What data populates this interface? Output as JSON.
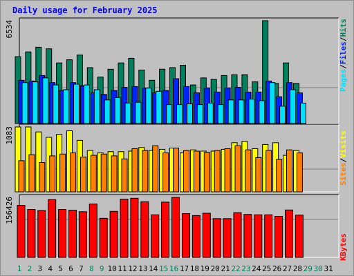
{
  "colors": {
    "background": "#c0c0c0",
    "title": "#0000ff",
    "hits": "#00805c",
    "files": "#0024ff",
    "pages": "#00e0ff",
    "visits": "#ffff00",
    "sites": "#ff8000",
    "kbytes": "#ff0000",
    "weekend_label": "#00805c"
  },
  "chart_data": {
    "type": "bar",
    "title": "Daily usage for February 2025",
    "days": [
      "1",
      "2",
      "3",
      "4",
      "5",
      "6",
      "7",
      "8",
      "9",
      "10",
      "11",
      "12",
      "13",
      "14",
      "15",
      "16",
      "17",
      "18",
      "19",
      "20",
      "21",
      "22",
      "23",
      "24",
      "25",
      "26",
      "27",
      "28",
      "29",
      "30",
      "31"
    ],
    "weekend_days": [
      "1",
      "2",
      "8",
      "9",
      "15",
      "16",
      "22",
      "23",
      "29",
      "30"
    ],
    "panels": [
      {
        "name": "hits-files-pages",
        "max_label": "6534",
        "ymax": 6534,
        "legend": [
          "Pages",
          "/",
          "Files",
          "/",
          "Hits"
        ],
        "series": [
          {
            "name": "Hits",
            "values": [
              4250,
              4550,
              4850,
              4750,
              3850,
              4050,
              4350,
              3550,
              2950,
              3450,
              3850,
              4150,
              3400,
              2750,
              3450,
              3550,
              3700,
              2450,
              2900,
              2800,
              3050,
              3100,
              3100,
              2650,
              6534,
              2550,
              3850,
              2550
            ]
          },
          {
            "name": "Files",
            "values": [
              2750,
              2700,
              3050,
              2600,
              2100,
              2600,
              2400,
              1950,
              1850,
              2100,
              2300,
              2350,
              2250,
              1950,
              2100,
              2850,
              2350,
              1950,
              2250,
              2000,
              2250,
              2300,
              2000,
              2000,
              2700,
              1700,
              2600,
              1950
            ]
          },
          {
            "name": "Pages",
            "values": [
              2600,
              2650,
              2900,
              2450,
              2150,
              2500,
              2450,
              2150,
              1500,
              1650,
              1300,
              1350,
              2250,
              2050,
              1200,
              1200,
              1250,
              1200,
              1300,
              1200,
              1500,
              1500,
              1550,
              1450,
              2600,
              1100,
              2150,
              1300
            ]
          }
        ]
      },
      {
        "name": "visits-sites",
        "max_label": "1083",
        "ymax": 1083,
        "legend": [
          "Sites",
          "/",
          "Visits"
        ],
        "series": [
          {
            "name": "Visits",
            "values": [
              1083,
              1083,
              1000,
              910,
              960,
              1020,
              860,
              690,
              650,
              670,
              670,
              680,
              740,
              690,
              710,
              730,
              650,
              700,
              680,
              680,
              710,
              820,
              840,
              720,
              790,
              820,
              610,
              690
            ]
          },
          {
            "name": "Sites",
            "values": [
              520,
              620,
              490,
              600,
              630,
              650,
              580,
              610,
              630,
              600,
              550,
              720,
              690,
              770,
              650,
              730,
              690,
              680,
              660,
              690,
              720,
              770,
              700,
              570,
              690,
              540,
              700,
              650
            ]
          }
        ]
      },
      {
        "name": "kbytes",
        "max_label": "156426",
        "ymax": 156426,
        "legend": [
          "KBytes"
        ],
        "series": [
          {
            "name": "KBytes",
            "values": [
              135500,
              125000,
              122000,
              150500,
              125000,
              123000,
              119000,
              139000,
              102000,
              120000,
              152000,
              154000,
              145000,
              111000,
              144000,
              156426,
              114000,
              109000,
              115000,
              101000,
              101000,
              116500,
              112000,
              111000,
              111000,
              107000,
              123500,
              110000
            ]
          }
        ]
      }
    ]
  }
}
